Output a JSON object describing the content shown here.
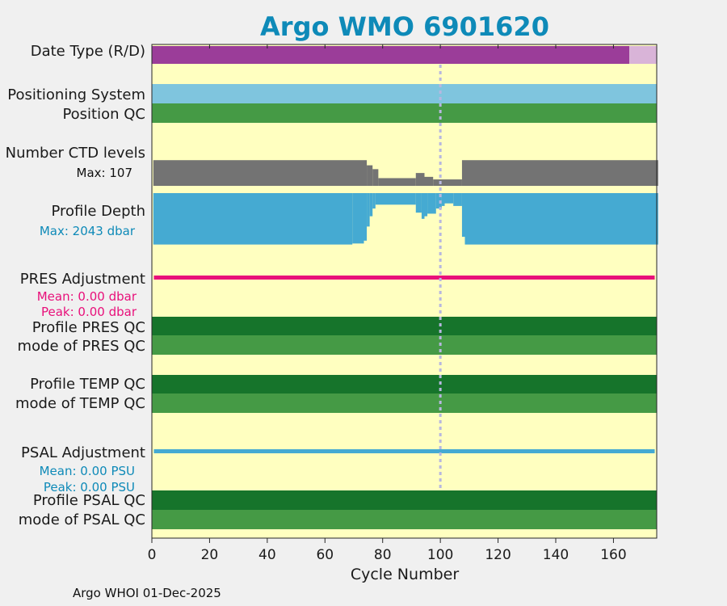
{
  "title": "Argo WMO 6901620",
  "footer": "Argo WHOI 01-Dec-2025",
  "colors": {
    "background": "#ffffc0",
    "title": "#0e8ab8",
    "date_type_realtime": "#9b3d99",
    "date_type_delayed": "#d9b4d8",
    "positioning_system": "#7fc5de",
    "qc_good_light": "#459a45",
    "qc_good_dark": "#16742b",
    "ctd_levels": "#737373",
    "profile_depth": "#45aad2",
    "pres_adjustment": "#e8107a",
    "psal_adjustment": "#45aad2",
    "cycle_marker": "#b7b7e0"
  },
  "rows": {
    "date_type": "Date Type (R/D)",
    "positioning_system": "Positioning System",
    "position_qc": "Position QC",
    "ctd_levels": "Number CTD levels",
    "ctd_levels_max": "Max: 107",
    "profile_depth": "Profile Depth",
    "profile_depth_max": "Max: 2043 dbar",
    "pres_adjustment": "PRES Adjustment",
    "pres_mean": "Mean: 0.00 dbar",
    "pres_peak": "Peak: 0.00 dbar",
    "profile_pres_qc": "Profile PRES QC",
    "mode_pres_qc": "mode of PRES QC",
    "profile_temp_qc": "Profile TEMP QC",
    "mode_temp_qc": "mode of TEMP QC",
    "psal_adjustment": "PSAL Adjustment",
    "psal_mean": "Mean: 0.00 PSU",
    "psal_peak": "Peak: 0.00 PSU",
    "profile_psal_qc": "Profile PSAL QC",
    "mode_psal_qc": "mode of PSAL QC"
  },
  "chart_data": {
    "type": "bar",
    "title": "Argo WMO 6901620",
    "xlabel": "Cycle Number",
    "xlim": [
      0,
      175
    ],
    "xticks": [
      0,
      20,
      40,
      60,
      80,
      100,
      120,
      140,
      160
    ],
    "marker_cycle": 100,
    "date_type": {
      "realtime_cycles": [
        1,
        165
      ],
      "delayed_cycles": [
        166,
        175
      ]
    },
    "ctd_levels": {
      "max": 107,
      "segments": [
        {
          "from": 1,
          "to": 74,
          "value": 100
        },
        {
          "from": 75,
          "to": 76,
          "value": 80
        },
        {
          "from": 77,
          "to": 78,
          "value": 65
        },
        {
          "from": 79,
          "to": 91,
          "value": 30
        },
        {
          "from": 92,
          "to": 94,
          "value": 50
        },
        {
          "from": 95,
          "to": 97,
          "value": 35
        },
        {
          "from": 98,
          "to": 107,
          "value": 25
        },
        {
          "from": 108,
          "to": 175,
          "value": 100
        }
      ]
    },
    "profile_depth": {
      "max": 2043,
      "segments": [
        {
          "from": 1,
          "to": 69,
          "value": 2000
        },
        {
          "from": 70,
          "to": 73,
          "value": 1960
        },
        {
          "from": 74,
          "to": 74,
          "value": 1850
        },
        {
          "from": 75,
          "to": 75,
          "value": 1300
        },
        {
          "from": 76,
          "to": 76,
          "value": 900
        },
        {
          "from": 77,
          "to": 77,
          "value": 600
        },
        {
          "from": 78,
          "to": 91,
          "value": 450
        },
        {
          "from": 92,
          "to": 93,
          "value": 760
        },
        {
          "from": 94,
          "to": 94,
          "value": 1000
        },
        {
          "from": 95,
          "to": 95,
          "value": 900
        },
        {
          "from": 96,
          "to": 98,
          "value": 800
        },
        {
          "from": 99,
          "to": 100,
          "value": 600
        },
        {
          "from": 101,
          "to": 101,
          "value": 500
        },
        {
          "from": 102,
          "to": 104,
          "value": 400
        },
        {
          "from": 105,
          "to": 107,
          "value": 500
        },
        {
          "from": 108,
          "to": 108,
          "value": 1700
        },
        {
          "from": 109,
          "to": 175,
          "value": 2000
        }
      ]
    },
    "pres_adjustment": {
      "mean": 0.0,
      "peak": 0.0,
      "unit": "dbar"
    },
    "psal_adjustment": {
      "mean": 0.0,
      "peak": 0.0,
      "unit": "PSU"
    }
  }
}
